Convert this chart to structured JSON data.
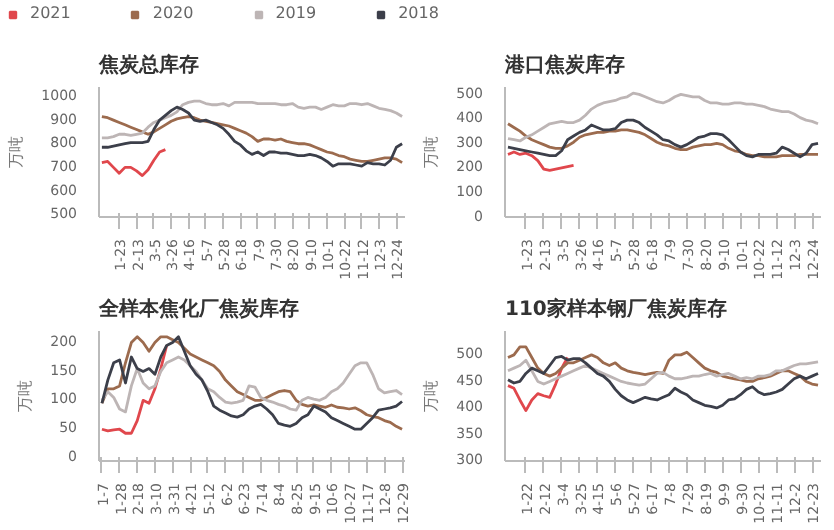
{
  "chart_data": [
    {
      "type": "line",
      "title": "焦炭总库存",
      "ylabel": "万吨",
      "legend": "top",
      "grid": false,
      "ylim": [
        480,
        1030
      ],
      "yticks": [
        500,
        600,
        700,
        800,
        900,
        1000
      ],
      "categories": [
        null,
        null,
        null,
        "1-23",
        null,
        null,
        "2-13",
        null,
        null,
        "3-5",
        null,
        null,
        "3-26",
        null,
        null,
        "4-16",
        null,
        null,
        "5-7",
        null,
        null,
        "5-28",
        null,
        null,
        "6-18",
        null,
        null,
        "7-9",
        null,
        null,
        "7-30",
        null,
        null,
        "8-20",
        null,
        null,
        "9-10",
        null,
        null,
        "10-1",
        null,
        null,
        "10-22",
        null,
        null,
        "11-12",
        null,
        null,
        "12-3",
        null,
        null,
        "12-24",
        null
      ],
      "series": [
        {
          "name": "2021",
          "color": "#e0474c",
          "values": [
            710,
            715,
            690,
            665,
            690,
            690,
            675,
            655,
            680,
            720,
            755,
            765,
            null,
            null,
            null,
            null,
            null,
            null,
            null,
            null,
            null,
            null,
            null,
            null,
            null,
            null,
            null,
            null,
            null,
            null,
            null,
            null,
            null,
            null,
            null,
            null,
            null,
            null,
            null,
            null,
            null,
            null,
            null,
            null,
            null,
            null,
            null,
            null,
            null,
            null,
            null,
            null,
            null
          ]
        },
        {
          "name": "2020",
          "color": "#9c6b4e",
          "values": [
            905,
            900,
            890,
            880,
            870,
            860,
            850,
            840,
            830,
            840,
            855,
            870,
            885,
            895,
            900,
            905,
            900,
            890,
            885,
            880,
            875,
            870,
            865,
            855,
            845,
            835,
            820,
            800,
            810,
            810,
            805,
            810,
            800,
            795,
            790,
            790,
            785,
            775,
            765,
            755,
            750,
            740,
            735,
            725,
            720,
            715,
            715,
            720,
            725,
            730,
            730,
            725,
            710
          ]
        },
        {
          "name": "2019",
          "color": "#bdb5b5",
          "values": [
            815,
            815,
            820,
            830,
            830,
            825,
            830,
            835,
            860,
            880,
            890,
            900,
            910,
            925,
            955,
            965,
            970,
            970,
            960,
            955,
            955,
            960,
            950,
            965,
            965,
            965,
            965,
            960,
            960,
            960,
            960,
            955,
            955,
            960,
            945,
            940,
            945,
            945,
            935,
            945,
            955,
            950,
            950,
            960,
            960,
            955,
            960,
            950,
            940,
            935,
            930,
            920,
            905
          ]
        },
        {
          "name": "2018",
          "color": "#3c3f4a",
          "values": [
            775,
            775,
            780,
            785,
            790,
            795,
            795,
            795,
            800,
            850,
            890,
            910,
            930,
            945,
            935,
            920,
            890,
            885,
            890,
            880,
            870,
            855,
            830,
            800,
            785,
            760,
            745,
            755,
            740,
            755,
            755,
            750,
            750,
            745,
            740,
            740,
            745,
            740,
            730,
            715,
            695,
            705,
            705,
            705,
            700,
            695,
            710,
            705,
            705,
            700,
            720,
            775,
            790
          ]
        }
      ]
    },
    {
      "type": "line",
      "title": "港口焦炭库存",
      "ylabel": "万吨",
      "grid": false,
      "ylim": [
        -10,
        520
      ],
      "yticks": [
        0,
        100,
        200,
        300,
        400,
        500
      ],
      "categories": [
        null,
        null,
        null,
        "1-23",
        null,
        null,
        "2-13",
        null,
        null,
        "3-5",
        null,
        null,
        "3-26",
        null,
        null,
        "4-16",
        null,
        null,
        "5-7",
        null,
        null,
        "5-28",
        null,
        null,
        "6-18",
        null,
        null,
        "7-9",
        null,
        null,
        "7-30",
        null,
        null,
        "8-20",
        null,
        null,
        "9-10",
        null,
        null,
        "10-1",
        null,
        null,
        "10-22",
        null,
        null,
        "11-12",
        null,
        null,
        "12-3",
        null,
        null,
        "12-24",
        null
      ],
      "series": [
        {
          "name": "2021",
          "color": "#e0474c",
          "values": [
            245,
            255,
            245,
            250,
            240,
            220,
            185,
            180,
            185,
            190,
            195,
            200,
            null,
            null,
            null,
            null,
            null,
            null,
            null,
            null,
            null,
            null,
            null,
            null,
            null,
            null,
            null,
            null,
            null,
            null,
            null,
            null,
            null,
            null,
            null,
            null,
            null,
            null,
            null,
            null,
            null,
            null,
            null,
            null,
            null,
            null,
            null,
            null,
            null,
            null,
            null,
            null,
            null
          ]
        },
        {
          "name": "2020",
          "color": "#9c6b4e",
          "values": [
            370,
            355,
            340,
            320,
            305,
            295,
            285,
            275,
            270,
            270,
            280,
            295,
            315,
            325,
            330,
            335,
            335,
            340,
            340,
            345,
            345,
            340,
            335,
            325,
            310,
            295,
            285,
            280,
            270,
            265,
            265,
            275,
            280,
            285,
            285,
            290,
            285,
            270,
            260,
            255,
            245,
            240,
            240,
            235,
            235,
            235,
            240,
            240,
            240,
            245,
            245,
            245,
            245
          ]
        },
        {
          "name": "2019",
          "color": "#bdb5b5",
          "values": [
            310,
            305,
            300,
            315,
            325,
            340,
            355,
            370,
            375,
            380,
            375,
            375,
            385,
            405,
            430,
            445,
            455,
            460,
            465,
            475,
            480,
            495,
            490,
            480,
            470,
            460,
            455,
            465,
            480,
            490,
            485,
            480,
            480,
            465,
            455,
            455,
            450,
            450,
            455,
            455,
            450,
            450,
            445,
            440,
            430,
            425,
            420,
            420,
            410,
            395,
            385,
            380,
            370
          ]
        },
        {
          "name": "2018",
          "color": "#3c3f4a",
          "values": [
            275,
            270,
            265,
            260,
            255,
            250,
            245,
            240,
            240,
            260,
            305,
            320,
            335,
            345,
            365,
            355,
            345,
            345,
            350,
            375,
            385,
            385,
            375,
            355,
            340,
            325,
            305,
            300,
            285,
            275,
            285,
            300,
            315,
            320,
            330,
            330,
            325,
            305,
            280,
            255,
            240,
            235,
            245,
            245,
            245,
            250,
            275,
            265,
            250,
            235,
            250,
            285,
            290
          ]
        }
      ]
    },
    {
      "type": "line",
      "title": "全样本焦化厂焦炭库存",
      "ylabel": "万吨",
      "grid": false,
      "ylim": [
        -10,
        215
      ],
      "yticks": [
        0,
        50,
        100,
        150,
        200
      ],
      "categories": [
        "1-7",
        null,
        null,
        "1-28",
        null,
        null,
        "2-18",
        null,
        null,
        "3-10",
        null,
        null,
        "3-31",
        null,
        null,
        "4-21",
        null,
        null,
        "5-12",
        null,
        null,
        "6-2",
        null,
        null,
        "6-23",
        null,
        null,
        "7-14",
        null,
        null,
        "8-4",
        null,
        null,
        "8-25",
        null,
        null,
        "9-15",
        null,
        null,
        "10-6",
        null,
        null,
        "10-27",
        null,
        null,
        "11-17",
        null,
        null,
        "12-8",
        null,
        null,
        "12-29"
      ],
      "series": [
        {
          "name": "2021",
          "color": "#e0474c",
          "values": [
            45,
            42,
            44,
            45,
            38,
            38,
            60,
            95,
            90,
            115,
            150,
            190,
            null,
            null,
            null,
            null,
            null,
            null,
            null,
            null,
            null,
            null,
            null,
            null,
            null,
            null,
            null,
            null,
            null,
            null,
            null,
            null,
            null,
            null,
            null,
            null,
            null,
            null,
            null,
            null,
            null,
            null,
            null,
            null,
            null,
            null,
            null,
            null,
            null,
            null,
            null,
            null
          ]
        },
        {
          "name": "2020",
          "color": "#9c6b4e",
          "values": [
            90,
            115,
            115,
            120,
            160,
            195,
            205,
            195,
            180,
            195,
            205,
            205,
            200,
            195,
            185,
            175,
            170,
            165,
            160,
            155,
            145,
            130,
            120,
            110,
            105,
            100,
            95,
            95,
            100,
            105,
            110,
            112,
            110,
            95,
            88,
            85,
            87,
            85,
            83,
            87,
            83,
            82,
            80,
            82,
            77,
            70,
            67,
            65,
            60,
            57,
            50,
            45
          ]
        },
        {
          "name": "2019",
          "color": "#bdb5b5",
          "values": [
            95,
            110,
            100,
            80,
            75,
            120,
            150,
            125,
            115,
            120,
            145,
            160,
            165,
            170,
            165,
            155,
            145,
            130,
            115,
            110,
            100,
            92,
            90,
            92,
            95,
            120,
            118,
            100,
            95,
            92,
            88,
            85,
            80,
            78,
            95,
            100,
            97,
            95,
            100,
            110,
            115,
            125,
            140,
            155,
            160,
            160,
            140,
            115,
            108,
            110,
            112,
            105
          ]
        },
        {
          "name": "2018",
          "color": "#3c3f4a",
          "values": [
            90,
            130,
            160,
            165,
            125,
            170,
            150,
            145,
            150,
            140,
            170,
            190,
            195,
            205,
            180,
            155,
            140,
            130,
            110,
            85,
            78,
            73,
            68,
            66,
            70,
            80,
            85,
            88,
            80,
            70,
            55,
            52,
            50,
            55,
            65,
            70,
            85,
            80,
            75,
            65,
            60,
            55,
            50,
            45,
            45,
            55,
            65,
            78,
            80,
            82,
            85,
            93
          ]
        }
      ]
    },
    {
      "type": "line",
      "title": "110家样本钢厂焦炭库存",
      "ylabel": "万吨",
      "grid": false,
      "ylim": [
        295,
        540
      ],
      "yticks": [
        300,
        350,
        400,
        450,
        500
      ],
      "categories": [
        null,
        null,
        null,
        "1-22",
        null,
        null,
        "2-12",
        null,
        null,
        "3-4",
        null,
        null,
        "3-25",
        null,
        null,
        "4-15",
        null,
        null,
        "5-6",
        null,
        null,
        "5-27",
        null,
        null,
        "6-17",
        null,
        null,
        "7-8",
        null,
        null,
        "7-29",
        null,
        null,
        "8-19",
        null,
        null,
        "9-9",
        null,
        null,
        "9-30",
        null,
        null,
        "10-21",
        null,
        null,
        "11-11",
        null,
        null,
        "12-2",
        null,
        null,
        "12-23",
        null
      ],
      "series": [
        {
          "name": "2021",
          "color": "#e0474c",
          "values": [
            437,
            432,
            410,
            390,
            410,
            422,
            418,
            415,
            440,
            470,
            490,
            null,
            null,
            null,
            null,
            null,
            null,
            null,
            null,
            null,
            null,
            null,
            null,
            null,
            null,
            null,
            null,
            null,
            null,
            null,
            null,
            null,
            null,
            null,
            null,
            null,
            null,
            null,
            null,
            null,
            null,
            null,
            null,
            null,
            null,
            null,
            null,
            null,
            null,
            null,
            null,
            null,
            null
          ]
        },
        {
          "name": "2020",
          "color": "#9c6b4e",
          "values": [
            490,
            495,
            510,
            510,
            490,
            470,
            460,
            455,
            460,
            470,
            480,
            480,
            485,
            490,
            495,
            490,
            480,
            475,
            480,
            470,
            465,
            462,
            460,
            458,
            460,
            462,
            460,
            485,
            495,
            495,
            500,
            490,
            480,
            470,
            465,
            462,
            455,
            452,
            450,
            448,
            445,
            445,
            450,
            452,
            455,
            460,
            465,
            465,
            460,
            455,
            445,
            440,
            438
          ]
        },
        {
          "name": "2019",
          "color": "#bdb5b5",
          "values": [
            465,
            470,
            475,
            485,
            465,
            445,
            440,
            445,
            450,
            455,
            460,
            465,
            470,
            475,
            470,
            465,
            460,
            455,
            450,
            445,
            442,
            440,
            438,
            440,
            450,
            460,
            462,
            455,
            450,
            450,
            452,
            455,
            455,
            458,
            460,
            455,
            458,
            460,
            455,
            450,
            452,
            450,
            455,
            455,
            458,
            465,
            465,
            470,
            475,
            478,
            478,
            480,
            482
          ]
        },
        {
          "name": "2018",
          "color": "#3c3f4a",
          "values": [
            448,
            442,
            445,
            460,
            470,
            465,
            460,
            475,
            490,
            492,
            485,
            488,
            488,
            480,
            470,
            460,
            455,
            445,
            430,
            418,
            410,
            405,
            410,
            415,
            412,
            410,
            415,
            420,
            432,
            425,
            420,
            410,
            405,
            400,
            398,
            395,
            400,
            410,
            412,
            420,
            430,
            435,
            425,
            420,
            422,
            425,
            430,
            440,
            450,
            455,
            450,
            455,
            460
          ]
        }
      ]
    }
  ]
}
